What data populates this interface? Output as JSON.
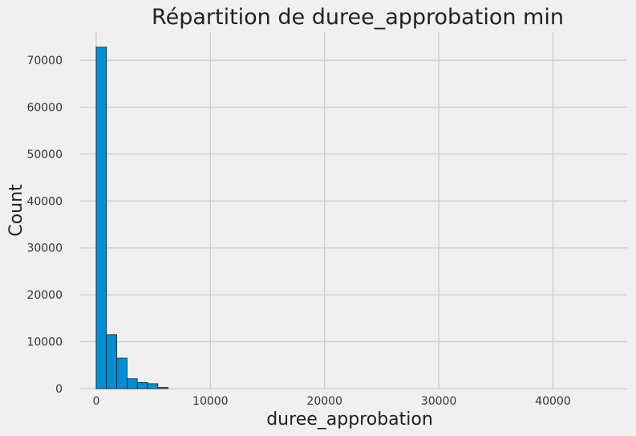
{
  "chart_data": {
    "type": "bar",
    "title": "Répartition de duree_approbation min",
    "xlabel": "duree_approbation",
    "ylabel": "Count",
    "xlim": [
      -1400,
      46500
    ],
    "ylim": [
      0,
      76000
    ],
    "xticks": [
      0,
      10000,
      20000,
      30000,
      40000
    ],
    "yticks": [
      0,
      10000,
      20000,
      30000,
      40000,
      50000,
      60000,
      70000
    ],
    "xtick_labels": [
      "0",
      "10000",
      "20000",
      "30000",
      "40000"
    ],
    "ytick_labels": [
      "0",
      "10000",
      "20000",
      "30000",
      "40000",
      "50000",
      "60000",
      "70000"
    ],
    "grid": true,
    "bin_edges": [
      0,
      900,
      1800,
      2700,
      3600,
      4500,
      5400,
      6300
    ],
    "counts": [
      72800,
      11500,
      6500,
      2100,
      1300,
      1050,
      250
    ]
  },
  "colors": {
    "bar": "#008fd5",
    "background": "#f0f0f0",
    "grid": "#cbcbcb"
  }
}
